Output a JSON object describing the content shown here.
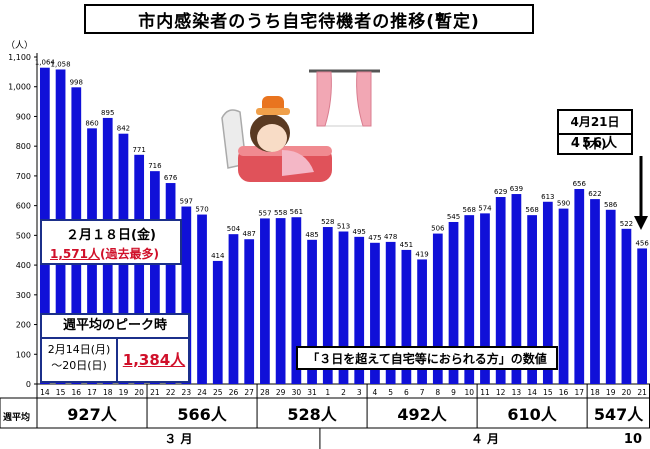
{
  "title": "市内感染者のうち自宅待機者の推移(暫定)",
  "unit_label": "（人）",
  "page_number": "10",
  "weekly_avg_label": "週平均",
  "peak_day": {
    "date": "２月１８日(金)",
    "value": "1,571人",
    "note": "(過去最多)"
  },
  "peak_week": {
    "heading": "週平均のピーク時",
    "period_line1": "2月14日(月)",
    "period_line2": "～20日(日)",
    "value": "1,384人"
  },
  "note": "「３日を超えて自宅等におられる方」の数値",
  "latest": {
    "date": "4月21日(木)",
    "value": "456人"
  },
  "colors": {
    "bar": "#1010d8",
    "border": "#000000",
    "accent_red": "#d0102a",
    "box_border_blue": "#1b2f8a"
  },
  "chart_data": {
    "type": "bar",
    "title": "市内感染者のうち自宅待機者の推移(暫定)",
    "ylabel": "（人）",
    "ylim": [
      0,
      1100
    ],
    "yticks": [
      0,
      100,
      200,
      300,
      400,
      500,
      600,
      700,
      800,
      900,
      1000,
      1100
    ],
    "ytick_labels": [
      "0",
      "100",
      "200",
      "300",
      "400",
      "500",
      "600",
      "700",
      "800",
      "900",
      "1,000",
      "1,100"
    ],
    "grid": false,
    "categories": [
      "14",
      "15",
      "16",
      "17",
      "18",
      "19",
      "20",
      "21",
      "22",
      "23",
      "24",
      "25",
      "26",
      "27",
      "28",
      "29",
      "30",
      "31",
      "1",
      "2",
      "3",
      "4",
      "5",
      "6",
      "7",
      "8",
      "9",
      "10",
      "11",
      "12",
      "13",
      "14",
      "15",
      "16",
      "17",
      "18",
      "19",
      "20",
      "21"
    ],
    "values": [
      1064,
      1058,
      998,
      860,
      895,
      842,
      771,
      716,
      676,
      597,
      570,
      414,
      504,
      487,
      557,
      558,
      561,
      485,
      528,
      513,
      495,
      475,
      478,
      451,
      419,
      506,
      545,
      568,
      574,
      629,
      639,
      568,
      613,
      590,
      656,
      622,
      586,
      522,
      456
    ],
    "value_labels": [
      "1,064",
      "1,058",
      "998",
      "860",
      "895",
      "842",
      "771",
      "716",
      "676",
      "597",
      "570",
      "414",
      "504",
      "487",
      "557",
      "558",
      "561",
      "485",
      "528",
      "513",
      "495",
      "475",
      "478",
      "451",
      "419",
      "506",
      "545",
      "568",
      "574",
      "629",
      "639",
      "568",
      "613",
      "590",
      "656",
      "622",
      "586",
      "522",
      "456"
    ],
    "months": [
      {
        "label": "３ 月",
        "start": 0,
        "end": 17
      },
      {
        "label": "４ 月",
        "start": 18,
        "end": 38
      }
    ],
    "weekly_averages": [
      {
        "label": "927人",
        "start": 0,
        "end": 6
      },
      {
        "label": "566人",
        "start": 7,
        "end": 13
      },
      {
        "label": "528人",
        "start": 14,
        "end": 20
      },
      {
        "label": "492人",
        "start": 21,
        "end": 27
      },
      {
        "label": "610人",
        "start": 28,
        "end": 34
      },
      {
        "label": "547人",
        "start": 35,
        "end": 38
      }
    ]
  }
}
